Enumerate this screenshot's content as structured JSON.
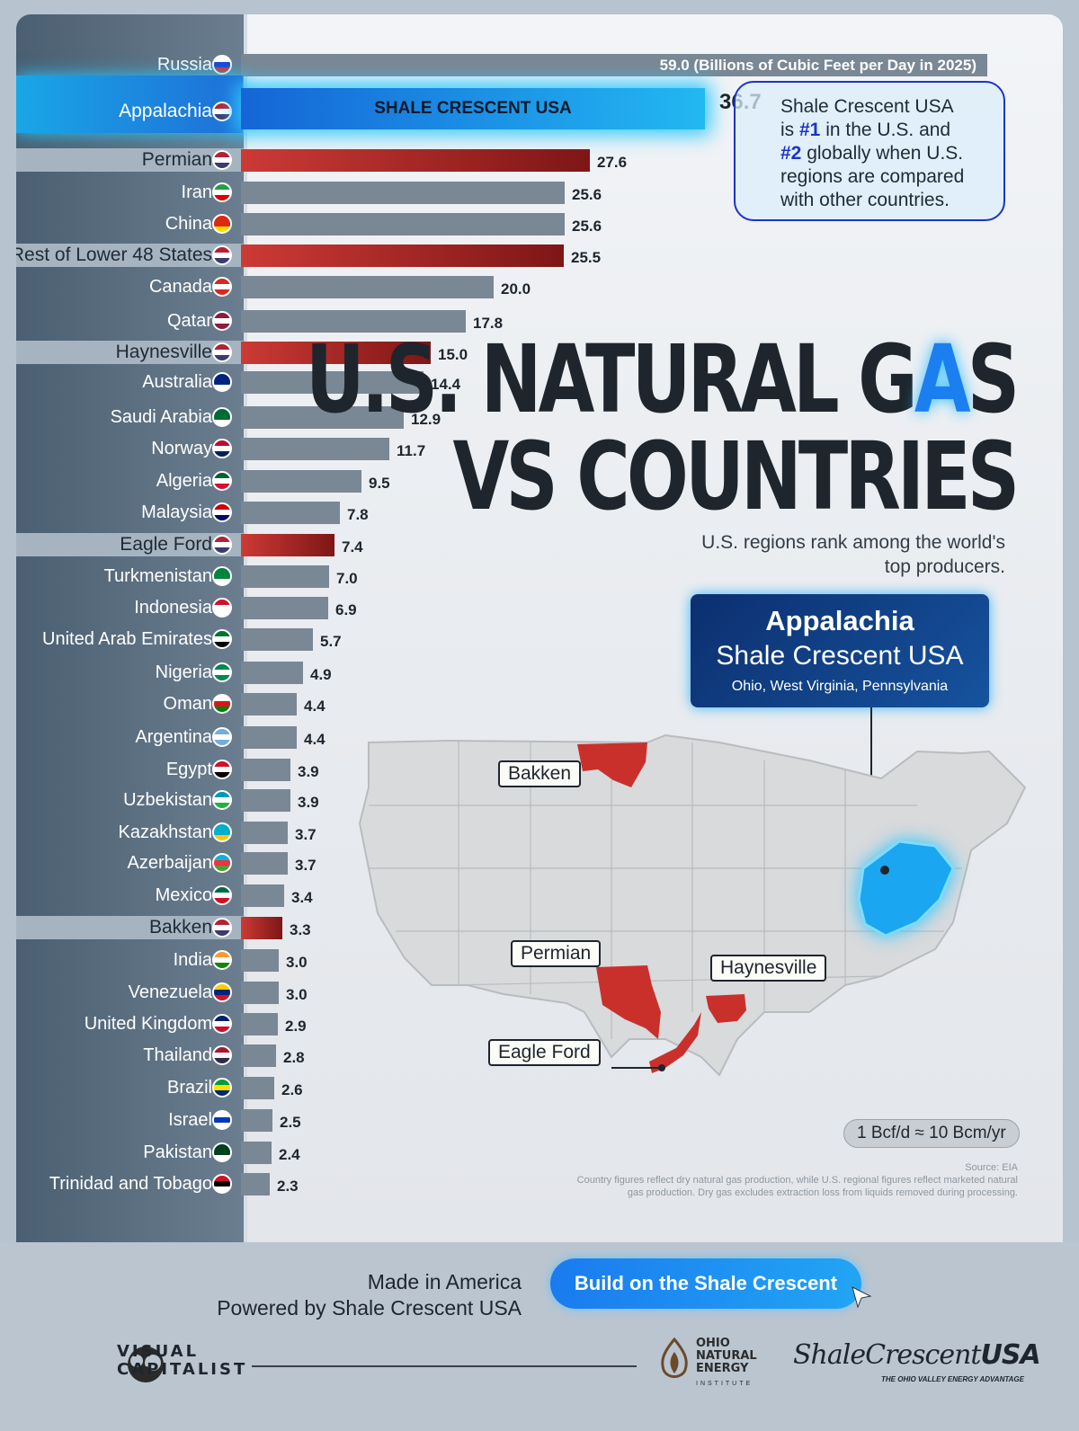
{
  "chart_data": {
    "type": "bar",
    "orientation": "horizontal",
    "unit_note": "59.0 (Billions of Cubic Feet per Day in 2025)",
    "categories": [
      "Russia",
      "Appalachia",
      "Permian",
      "Iran",
      "China",
      "Rest of Lower 48 States",
      "Canada",
      "Qatar",
      "Haynesville",
      "Australia",
      "Saudi Arabia",
      "Norway",
      "Algeria",
      "Malaysia",
      "Eagle Ford",
      "Turkmenistan",
      "Indonesia",
      "United Arab Emirates",
      "Nigeria",
      "Oman",
      "Argentina",
      "Egypt",
      "Uzbekistan",
      "Kazakhstan",
      "Azerbaijan",
      "Mexico",
      "Bakken",
      "India",
      "Venezuela",
      "United Kingdom",
      "Thailand",
      "Brazil",
      "Israel",
      "Pakistan",
      "Trinidad and Tobago"
    ],
    "values": [
      59.0,
      36.7,
      27.6,
      25.6,
      25.6,
      25.5,
      20.0,
      17.8,
      15.0,
      14.4,
      12.9,
      11.7,
      9.5,
      7.8,
      7.4,
      7.0,
      6.9,
      5.7,
      4.9,
      4.4,
      4.4,
      3.9,
      3.9,
      3.7,
      3.7,
      3.4,
      3.3,
      3.0,
      3.0,
      2.9,
      2.8,
      2.6,
      2.5,
      2.4,
      2.3
    ],
    "value_labels": [
      "59.0",
      "36.7",
      "27.6",
      "25.6",
      "25.6",
      "25.5",
      "20.0",
      "17.8",
      "15.0",
      "14.4",
      "12.9",
      "11.7",
      "9.5",
      "7.8",
      "7.4",
      "7.0",
      "6.9",
      "5.7",
      "4.9",
      "4.4",
      "4.4",
      "3.9",
      "3.9",
      "3.7",
      "3.7",
      "3.4",
      "3.3",
      "3.0",
      "3.0",
      "2.9",
      "2.8",
      "2.6",
      "2.5",
      "2.4",
      "2.3"
    ],
    "is_us_region": [
      false,
      true,
      true,
      false,
      false,
      true,
      false,
      false,
      true,
      false,
      false,
      false,
      false,
      false,
      true,
      false,
      false,
      false,
      false,
      false,
      false,
      false,
      false,
      false,
      false,
      false,
      true,
      false,
      false,
      false,
      false,
      false,
      false,
      false,
      false
    ],
    "flag_colors": [
      [
        "#ffffff",
        "#1c3fd0",
        "#d52b1e"
      ],
      [
        "#b22234",
        "#ffffff",
        "#3c3b6e"
      ],
      [
        "#b22234",
        "#ffffff",
        "#3c3b6e"
      ],
      [
        "#239f40",
        "#ffffff",
        "#da0000"
      ],
      [
        "#de2910",
        "#de2910",
        "#ffde00"
      ],
      [
        "#b22234",
        "#ffffff",
        "#3c3b6e"
      ],
      [
        "#d52b1e",
        "#ffffff",
        "#d52b1e"
      ],
      [
        "#8d1b3d",
        "#ffffff",
        "#8d1b3d"
      ],
      [
        "#b22234",
        "#ffffff",
        "#3c3b6e"
      ],
      [
        "#00247d",
        "#00247d",
        "#ffffff"
      ],
      [
        "#006c35",
        "#006c35",
        "#ffffff"
      ],
      [
        "#ba0c2f",
        "#ffffff",
        "#00205b"
      ],
      [
        "#006233",
        "#ffffff",
        "#d21034"
      ],
      [
        "#cc0001",
        "#ffffff",
        "#010066"
      ],
      [
        "#b22234",
        "#ffffff",
        "#3c3b6e"
      ],
      [
        "#00843d",
        "#00843d",
        "#ffffff"
      ],
      [
        "#ce1126",
        "#ffffff",
        "#ffffff"
      ],
      [
        "#00732f",
        "#ffffff",
        "#000000"
      ],
      [
        "#008751",
        "#ffffff",
        "#008751"
      ],
      [
        "#ffffff",
        "#db161b",
        "#008000"
      ],
      [
        "#74acdf",
        "#ffffff",
        "#74acdf"
      ],
      [
        "#ce1126",
        "#ffffff",
        "#000000"
      ],
      [
        "#0099b5",
        "#ffffff",
        "#1eb53a"
      ],
      [
        "#00afca",
        "#00afca",
        "#fec50c"
      ],
      [
        "#00b5e2",
        "#ef3340",
        "#509e2f"
      ],
      [
        "#006847",
        "#ffffff",
        "#ce1126"
      ],
      [
        "#b22234",
        "#ffffff",
        "#3c3b6e"
      ],
      [
        "#ff9933",
        "#ffffff",
        "#138808"
      ],
      [
        "#ffcc00",
        "#00247d",
        "#cf142b"
      ],
      [
        "#012169",
        "#ffffff",
        "#c8102e"
      ],
      [
        "#a51931",
        "#f4f5f8",
        "#2d2a4a"
      ],
      [
        "#009c3b",
        "#ffdf00",
        "#002776"
      ],
      [
        "#ffffff",
        "#0038b8",
        "#ffffff"
      ],
      [
        "#01411c",
        "#01411c",
        "#ffffff"
      ],
      [
        "#ce1126",
        "#000000",
        "#ffffff"
      ]
    ],
    "xlim": [
      0,
      59.0
    ],
    "grid": false,
    "legend": "none"
  },
  "bar_texts": {
    "russia_inline": "59.0 (Billions of Cubic Feet per Day in 2025)",
    "appalachia_inline": "SHALE CRESCENT USA"
  },
  "callout": {
    "value": "36.7",
    "line1": "Shale Crescent USA",
    "line2_pre": "is ",
    "line2_hl": "#1",
    "line2_post": " in the U.S. and",
    "line3_hl": "#2",
    "line3_post": " globally when U.S.",
    "line4": "regions are compared",
    "line5": "with other countries."
  },
  "title": {
    "line1_pre": "U.S. NATURAL G",
    "line1_flame": "A",
    "line1_post": "S",
    "line2": "VS COUNTRIES"
  },
  "subtitle": "U.S. regions rank among the world's top producers.",
  "appalachia_box": {
    "title": "Appalachia",
    "subtitle": "Shale Crescent USA",
    "states": "Ohio, West Virginia, Pennsylvania"
  },
  "map_labels": {
    "bakken": "Bakken",
    "permian": "Permian",
    "haynesville": "Haynesville",
    "eagle_ford": "Eagle Ford"
  },
  "conversion": "1 Bcf/d ≈ 10 Bcm/yr",
  "source": {
    "line1": "Source: EIA",
    "line2": "Country figures reflect dry natural gas production, while U.S. regional figures reflect marketed natural",
    "line3": "gas production. Dry gas excludes extraction loss from liquids removed during processing."
  },
  "footer": {
    "made_in": "Made in America",
    "powered_by": "Powered by Shale Crescent USA",
    "cta": "Build on the Shale Crescent",
    "vc_line1": "VISUAL",
    "vc_line2": "CAPITALIST",
    "onei_line1": "OHIO",
    "onei_line2": "NATURAL",
    "onei_line3": "ENERGY",
    "onei_line4": "INSTITUTE",
    "sc_shale": "Shale",
    "sc_crescent": "Crescent",
    "sc_usa": "USA",
    "sc_tagline": "THE OHIO VALLEY ENERGY ADVANTAGE"
  },
  "colors": {
    "us_bar": "#b02a28",
    "country_bar": "#7a8795",
    "appalachia_bar": "#1c8fe8",
    "accent": "#1b34c9"
  }
}
